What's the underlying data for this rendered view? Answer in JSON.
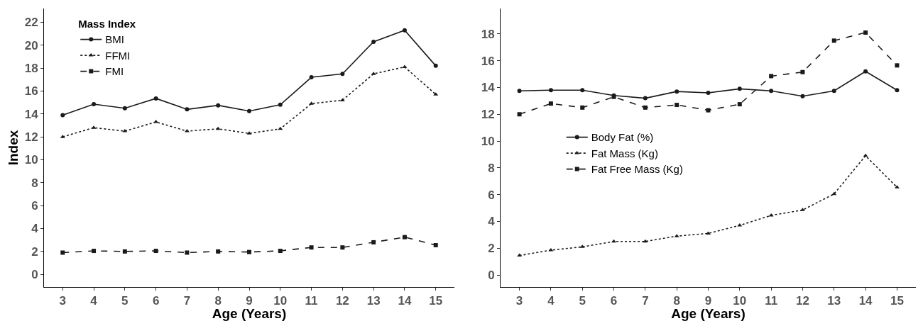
{
  "chart_data": [
    {
      "type": "line",
      "xlabel": "Age (Years)",
      "ylabel": "Index",
      "legend_title": "Mass Index",
      "legend": "top left",
      "grid": false,
      "x": [
        3,
        4,
        5,
        6,
        7,
        8,
        9,
        10,
        11,
        12,
        13,
        14,
        15
      ],
      "xlim": [
        2.4,
        15.6
      ],
      "xticks": [
        3,
        4,
        5,
        6,
        7,
        8,
        9,
        10,
        11,
        12,
        13,
        14,
        15
      ],
      "ylim": [
        -1.1,
        23.2
      ],
      "yticks": [
        0,
        2,
        4,
        6,
        8,
        10,
        12,
        14,
        16,
        18,
        20,
        22
      ],
      "series": [
        {
          "name": "BMI",
          "color": "#1a1a1a",
          "marker": "circle",
          "line_style": "solid",
          "values": [
            13.9,
            14.85,
            14.5,
            15.35,
            14.4,
            14.75,
            14.25,
            14.8,
            17.2,
            17.5,
            20.3,
            21.3,
            18.2
          ]
        },
        {
          "name": "FFMI",
          "color": "#1a1a1a",
          "marker": "triangle",
          "line_style": "dotted",
          "values": [
            12.0,
            12.8,
            12.5,
            13.3,
            12.5,
            12.7,
            12.3,
            12.7,
            14.9,
            15.2,
            17.5,
            18.1,
            15.7
          ]
        },
        {
          "name": "FMI",
          "color": "#1a1a1a",
          "marker": "square",
          "line_style": "dashed",
          "values": [
            1.9,
            2.05,
            2.0,
            2.05,
            1.9,
            2.0,
            1.95,
            2.05,
            2.35,
            2.35,
            2.8,
            3.25,
            2.55
          ]
        }
      ]
    },
    {
      "type": "line",
      "xlabel": "Age (Years)",
      "legend": "left",
      "grid": false,
      "x": [
        3,
        4,
        5,
        6,
        7,
        8,
        9,
        10,
        11,
        12,
        13,
        14,
        15
      ],
      "xlim": [
        2.4,
        15.6
      ],
      "xticks": [
        3,
        4,
        5,
        6,
        7,
        8,
        9,
        10,
        11,
        12,
        13,
        14,
        15
      ],
      "ylim": [
        -0.9,
        19.9
      ],
      "yticks": [
        0,
        2,
        4,
        6,
        8,
        10,
        12,
        14,
        16,
        18
      ],
      "series": [
        {
          "name": "Body Fat (%)",
          "color": "#1a1a1a",
          "marker": "circle",
          "line_style": "solid",
          "values": [
            13.75,
            13.8,
            13.8,
            13.4,
            13.2,
            13.7,
            13.6,
            13.9,
            13.75,
            13.35,
            13.75,
            15.2,
            13.8
          ]
        },
        {
          "name": "Fat Mass (Kg)",
          "color": "#1a1a1a",
          "marker": "triangle",
          "line_style": "dotted",
          "values": [
            1.45,
            1.85,
            2.1,
            2.5,
            2.5,
            2.9,
            3.1,
            3.7,
            4.45,
            4.85,
            6.05,
            8.9,
            6.55
          ]
        },
        {
          "name": "Fat Free Mass (Kg)",
          "color": "#1a1a1a",
          "marker": "square",
          "line_style": "dashed",
          "values": [
            12.0,
            12.8,
            12.5,
            13.3,
            12.5,
            12.7,
            12.3,
            12.75,
            14.85,
            15.15,
            17.5,
            18.1,
            15.65
          ]
        }
      ]
    }
  ]
}
